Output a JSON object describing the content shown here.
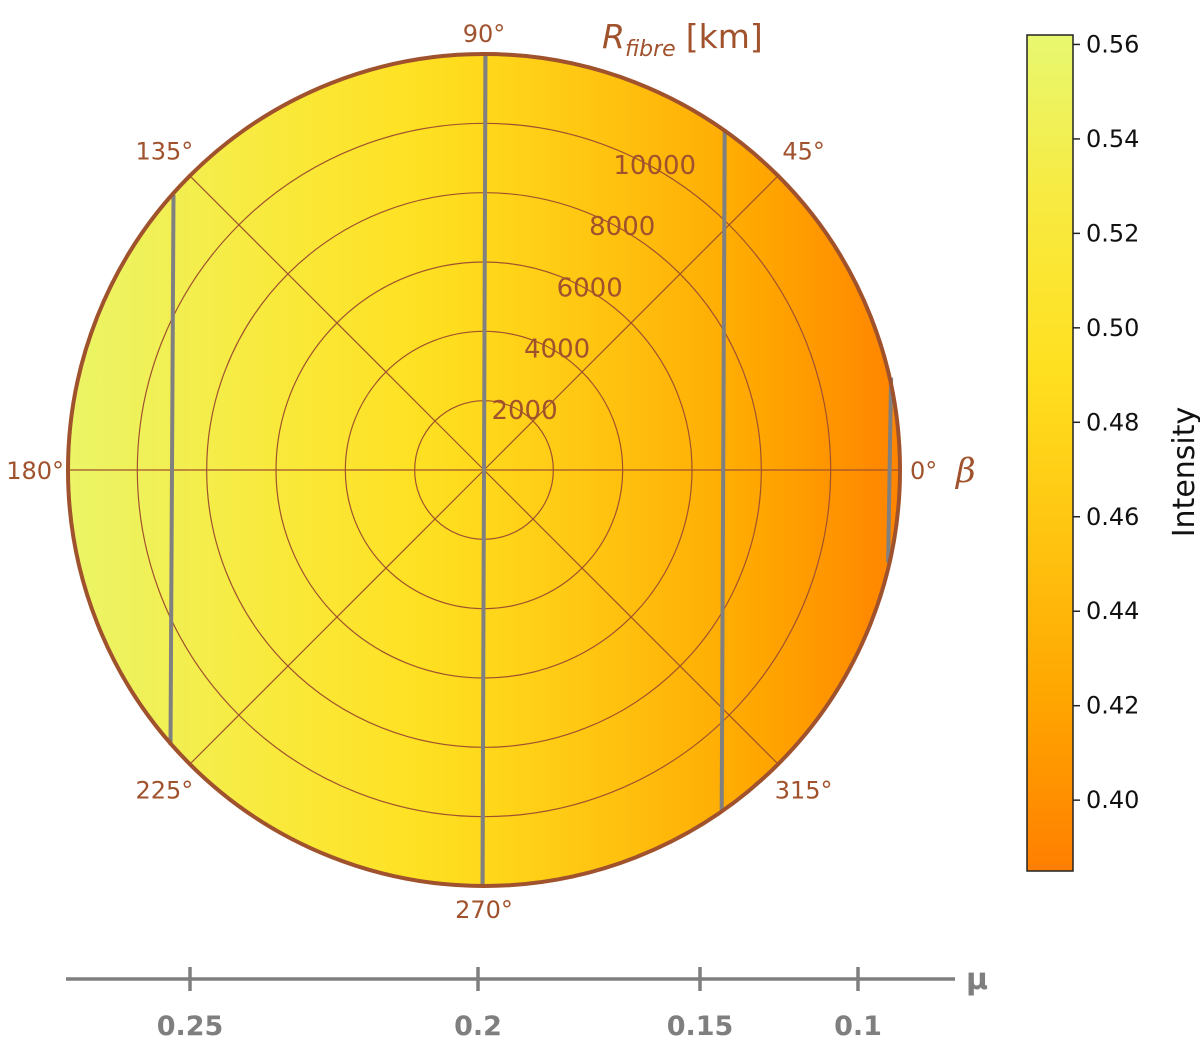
{
  "chart_data": {
    "type": "polar-heatmap",
    "radial_axis": {
      "label_main": "R",
      "label_sub": "fibre",
      "label_unit": "[km]",
      "ticks": [
        2000,
        4000,
        6000,
        8000,
        10000
      ],
      "max": 12000
    },
    "angular_axis": {
      "label": "β",
      "ticks": [
        0,
        45,
        90,
        135,
        180,
        225,
        270,
        315
      ],
      "tick_labels": [
        "0°",
        "45°",
        "90°",
        "135°",
        "180°",
        "225°",
        "270°",
        "315°"
      ]
    },
    "mu_axis": {
      "label": "μ",
      "ticks": [
        0.25,
        0.2,
        0.15,
        0.1
      ],
      "tick_labels": [
        "0.25",
        "0.2",
        "0.15",
        "0.1"
      ]
    },
    "mu_contours_r_km": [
      {
        "mu": 0.25,
        "x_km": -9000
      },
      {
        "mu": 0.2,
        "x_km": 0
      },
      {
        "mu": 0.15,
        "x_km": 6900
      },
      {
        "mu": 0.1,
        "x_km": 11700
      }
    ],
    "colorbar": {
      "label": "Intensity",
      "min": 0.385,
      "max": 0.562,
      "ticks": [
        0.4,
        0.42,
        0.44,
        0.46,
        0.48,
        0.5,
        0.52,
        0.54,
        0.56
      ],
      "tick_labels": [
        "0.40",
        "0.42",
        "0.44",
        "0.46",
        "0.48",
        "0.50",
        "0.52",
        "0.54",
        "0.56"
      ],
      "colors_low_to_high": [
        "#ff7f00",
        "#ffa500",
        "#ffc410",
        "#ffe020",
        "#f8ea40",
        "#e8f870"
      ]
    },
    "intensity_range_across_disk": [
      0.555,
      0.39
    ]
  }
}
